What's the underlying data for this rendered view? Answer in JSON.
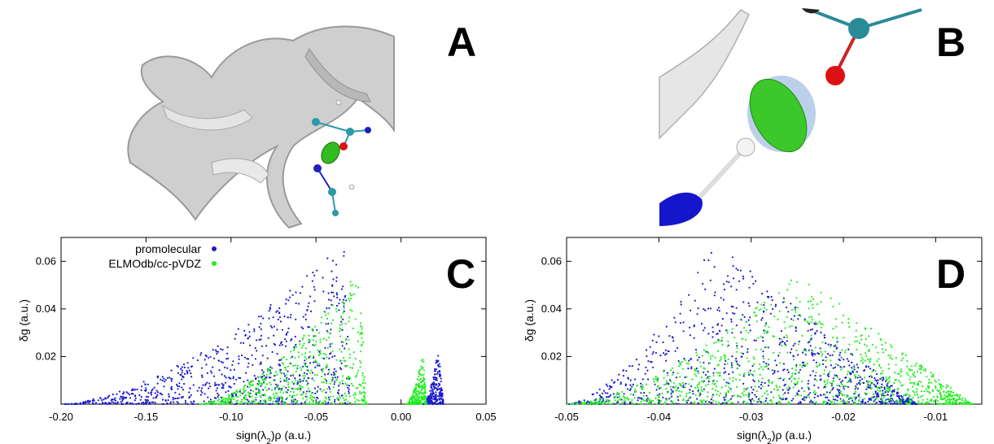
{
  "panels": {
    "a": "A",
    "b": "B",
    "c": "C",
    "d": "D"
  },
  "colors": {
    "promolecular": "#1a1acc",
    "elmodb": "#22ee22",
    "ribbon": "#c8c8c8",
    "carbon": "#2a9aa8",
    "oxygen": "#dd1111",
    "nitrogen": "#2020c0",
    "hydrogen": "#eeeeee"
  },
  "chart_data": [
    {
      "panel": "C",
      "type": "scatter",
      "xlabel": "sign(λ2)ρ (a.u.)",
      "ylabel": "δg (a.u.)",
      "xlim": [
        -0.2,
        0.05
      ],
      "ylim": [
        0.0,
        0.07
      ],
      "xticks": [
        "-0.20",
        "-0.15",
        "-0.10",
        "-0.05",
        "0.00",
        "0.05"
      ],
      "yticks": [
        "0.02",
        "0.04",
        "0.06"
      ],
      "legend": "top-left",
      "series": [
        {
          "name": "promolecular",
          "color": "#1a1acc",
          "clusters": [
            {
              "x_range": [
                -0.2,
                -0.03
              ],
              "peak_x": -0.033,
              "peak_y": 0.068
            },
            {
              "x_range": [
                0.013,
                0.025
              ],
              "peak_x": 0.022,
              "peak_y": 0.023
            }
          ]
        },
        {
          "name": "ELMOdb/cc-pVDZ",
          "color": "#22ee22",
          "clusters": [
            {
              "x_range": [
                -0.12,
                -0.02
              ],
              "peak_x": -0.025,
              "peak_y": 0.056
            },
            {
              "x_range": [
                0.003,
                0.015
              ],
              "peak_x": 0.013,
              "peak_y": 0.021
            }
          ]
        }
      ]
    },
    {
      "panel": "D",
      "type": "scatter",
      "xlabel": "sign(λ2)ρ (a.u.)",
      "ylabel": "δg (a.u.)",
      "xlim": [
        -0.05,
        -0.005
      ],
      "ylim": [
        0.0,
        0.07
      ],
      "xticks": [
        "-0.05",
        "-0.04",
        "-0.03",
        "-0.02",
        "-0.01"
      ],
      "yticks": [
        "0.02",
        "0.04",
        "0.06"
      ],
      "series": [
        {
          "name": "promolecular",
          "color": "#1a1acc",
          "clusters": [
            {
              "x_range": [
                -0.05,
                -0.012
              ],
              "peak_x": -0.034,
              "peak_y": 0.068
            }
          ]
        },
        {
          "name": "ELMOdb/cc-pVDZ",
          "color": "#22ee22",
          "clusters": [
            {
              "x_range": [
                -0.05,
                -0.006
              ],
              "peak_x": -0.025,
              "peak_y": 0.056
            }
          ]
        }
      ]
    }
  ]
}
